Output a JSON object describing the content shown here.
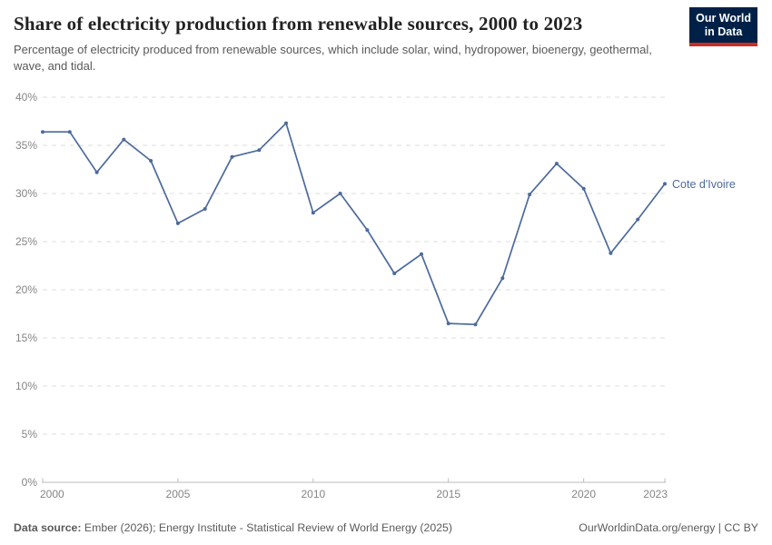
{
  "header": {
    "title": "Share of electricity production from renewable sources, 2000 to 2023",
    "subtitle": "Percentage of electricity produced from renewable sources, which include solar, wind, hydropower, bioenergy, geothermal, wave, and tidal.",
    "logo": {
      "line1": "Our World",
      "line2": "in Data",
      "bg_color": "#002147",
      "stripe_color": "#cc2b24"
    }
  },
  "chart_data": {
    "type": "line",
    "title": "Share of electricity production from renewable sources, 2000 to 2023",
    "xlabel": "",
    "ylabel": "",
    "xlim": [
      2000,
      2023
    ],
    "ylim": [
      0,
      40
    ],
    "grid": "horizontal-dashed",
    "legend_position": "end-of-line-label",
    "x": [
      2000,
      2001,
      2002,
      2003,
      2004,
      2005,
      2006,
      2007,
      2008,
      2009,
      2010,
      2011,
      2012,
      2013,
      2014,
      2015,
      2016,
      2017,
      2018,
      2019,
      2020,
      2021,
      2022,
      2023
    ],
    "series": [
      {
        "name": "Cote d'Ivoire",
        "color": "#4c6a9c",
        "values": [
          36.4,
          36.4,
          32.2,
          35.6,
          33.4,
          26.9,
          28.4,
          33.8,
          34.5,
          37.3,
          28.0,
          30.0,
          26.2,
          21.7,
          23.7,
          16.5,
          16.4,
          21.2,
          29.9,
          33.1,
          30.5,
          23.8,
          27.3,
          31.0
        ]
      }
    ],
    "x_ticks": [
      {
        "value": 2000,
        "label": "2000"
      },
      {
        "value": 2005,
        "label": "2005"
      },
      {
        "value": 2010,
        "label": "2010"
      },
      {
        "value": 2015,
        "label": "2015"
      },
      {
        "value": 2020,
        "label": "2020"
      },
      {
        "value": 2023,
        "label": "2023"
      }
    ],
    "y_ticks": [
      {
        "value": 0,
        "label": "0%"
      },
      {
        "value": 5,
        "label": "5%"
      },
      {
        "value": 10,
        "label": "10%"
      },
      {
        "value": 15,
        "label": "15%"
      },
      {
        "value": 20,
        "label": "20%"
      },
      {
        "value": 25,
        "label": "25%"
      },
      {
        "value": 30,
        "label": "30%"
      },
      {
        "value": 35,
        "label": "35%"
      },
      {
        "value": 40,
        "label": "40%"
      }
    ]
  },
  "footer": {
    "datasource_label": "Data source:",
    "datasource_text": " Ember (2026); Energy Institute - Statistical Review of World Energy (2025)",
    "credit": "OurWorldinData.org/energy | CC BY"
  }
}
